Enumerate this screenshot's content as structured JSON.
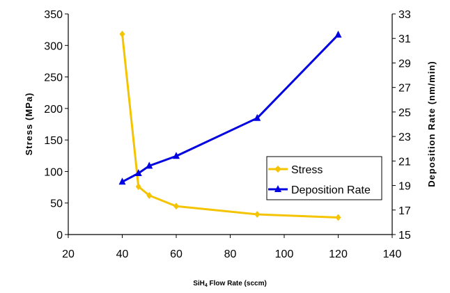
{
  "chart_data": {
    "type": "line",
    "xlabel_main": "SiH",
    "xlabel_sub": "4",
    "xlabel_rest": " Flow Rate (sccm)",
    "ylabel_left": "Stress (MPa)",
    "ylabel_right": "Deposition Rate (nm/min)",
    "xlim": [
      20,
      140
    ],
    "xticks": [
      20,
      40,
      60,
      80,
      100,
      120,
      140
    ],
    "ylim_left": [
      0,
      350
    ],
    "yticks_left": [
      0,
      50,
      100,
      150,
      200,
      250,
      300,
      350
    ],
    "ylim_right": [
      15,
      33
    ],
    "yticks_right": [
      15,
      17,
      19,
      21,
      23,
      25,
      27,
      29,
      31,
      33
    ],
    "legend_position": "lower-right",
    "series": [
      {
        "name": "Stress",
        "axis": "left",
        "color": "#f5c400",
        "marker": "diamond",
        "x": [
          40,
          46,
          50,
          60,
          90,
          120
        ],
        "y": [
          318,
          76,
          62,
          45,
          32,
          27
        ]
      },
      {
        "name": "Deposition Rate",
        "axis": "right",
        "color": "#0000e0",
        "marker": "triangle",
        "x": [
          40,
          46,
          50,
          60,
          90,
          120
        ],
        "y": [
          19.3,
          20.0,
          20.6,
          21.4,
          24.5,
          31.3
        ]
      }
    ]
  }
}
